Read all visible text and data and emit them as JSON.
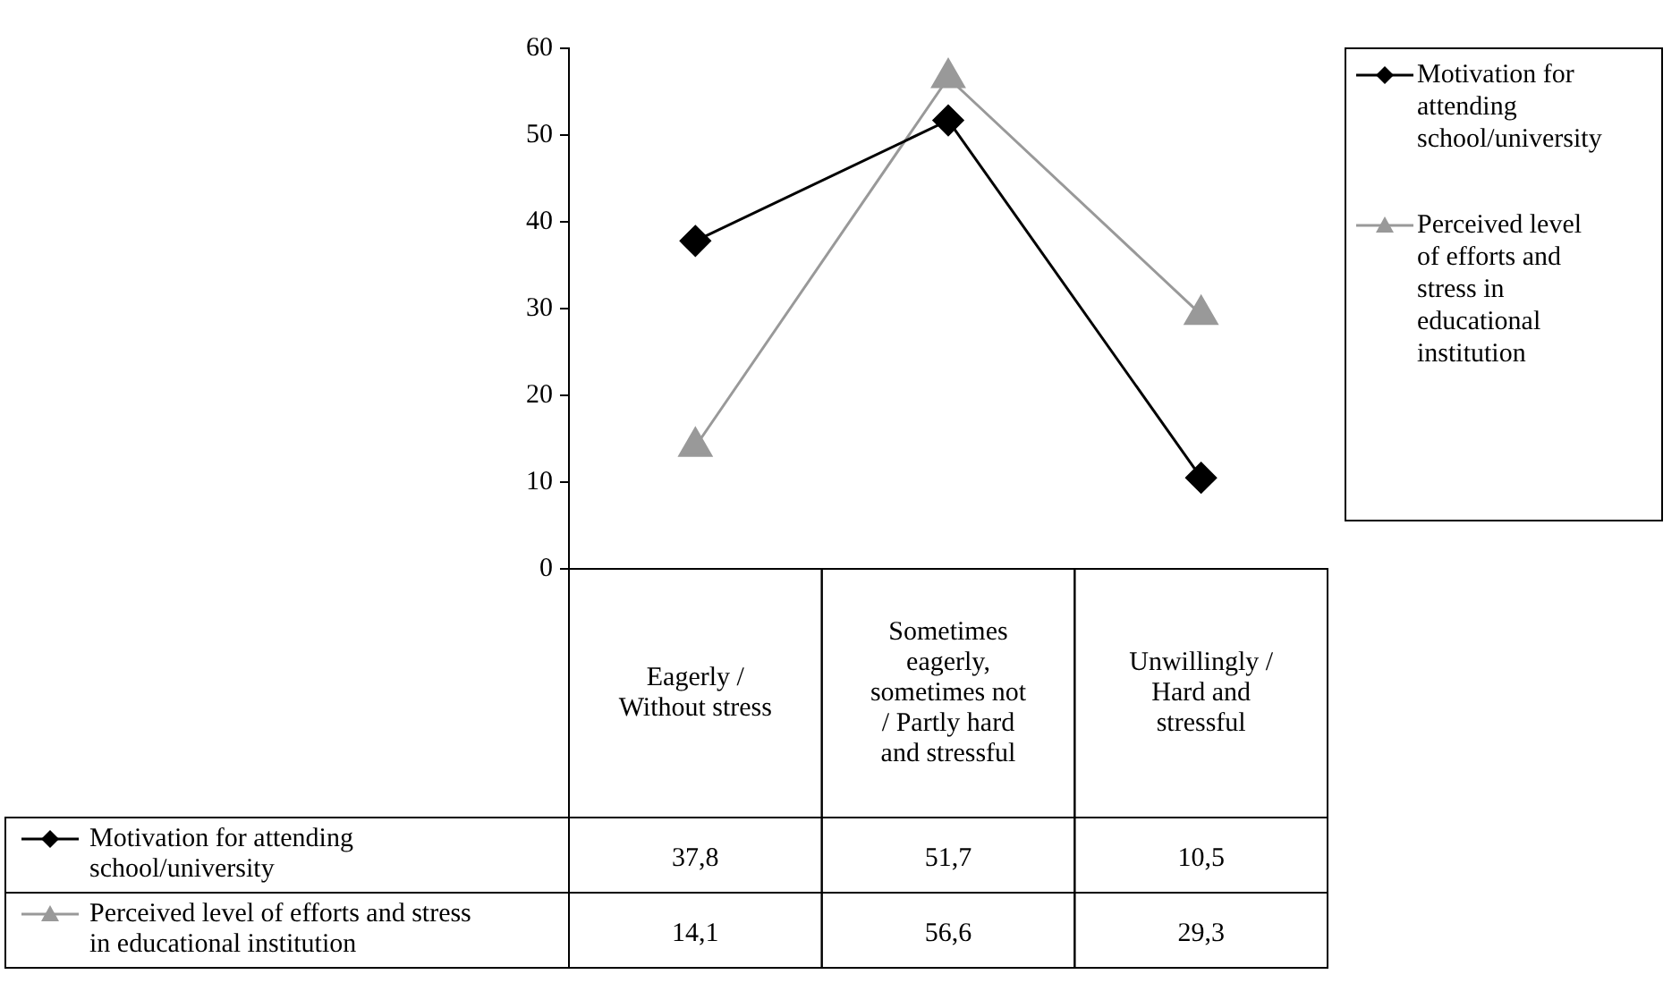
{
  "chart_data": {
    "type": "line",
    "categories": [
      "Eagerly / Without stress",
      "Sometimes eagerly, sometimes not / Partly hard and stressful",
      "Unwillingly / Hard and stressful"
    ],
    "series": [
      {
        "name": "Motivation for attending school/university",
        "color": "#000000",
        "marker": "diamond",
        "values": [
          37.8,
          51.7,
          10.5
        ],
        "value_labels": [
          "37,8",
          "51,7",
          "10,5"
        ]
      },
      {
        "name": "Perceived level of efforts and stress in educational institution",
        "color": "#999999",
        "marker": "triangle",
        "values": [
          14.1,
          56.6,
          29.3
        ],
        "value_labels": [
          "14,1",
          "56,6",
          "29,3"
        ]
      }
    ],
    "ylim": [
      0,
      60
    ],
    "yticks": [
      0,
      10,
      20,
      30,
      40,
      50,
      60
    ],
    "grid": false,
    "legend": "right"
  }
}
